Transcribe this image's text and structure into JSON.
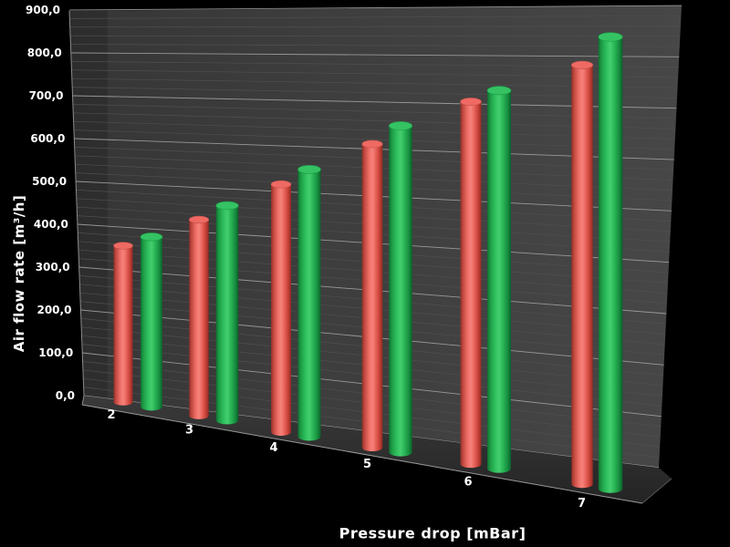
{
  "chart_data": {
    "type": "bar",
    "style": "3d-cylinder",
    "title": "",
    "xlabel": "Pressure drop [mBar]",
    "ylabel": "Air flow rate [m³/h]",
    "categories": [
      "2",
      "3",
      "4",
      "5",
      "6",
      "7"
    ],
    "series": [
      {
        "name": "red",
        "color": "#e8534e",
        "values": [
          350,
          420,
          510,
          600,
          690,
          770
        ]
      },
      {
        "name": "green",
        "color": "#2ab557",
        "values": [
          380,
          460,
          550,
          645,
          720,
          830
        ]
      }
    ],
    "ylim": [
      0,
      900
    ],
    "ytick_step": 100,
    "ytick_labels": [
      "0,0",
      "100,0",
      "200,0",
      "300,0",
      "400,0",
      "500,0",
      "600,0",
      "700,0",
      "800,0",
      "900,0"
    ],
    "minor_grid_step": 20,
    "grid": true,
    "legend": false,
    "colors": {
      "background": "#000000",
      "wall": "#3d3d3d",
      "floor": "#303030",
      "major_gridline": "#a8a8a8",
      "minor_gridline": "#4f4f4f",
      "axis_text": "#ffffff"
    }
  }
}
